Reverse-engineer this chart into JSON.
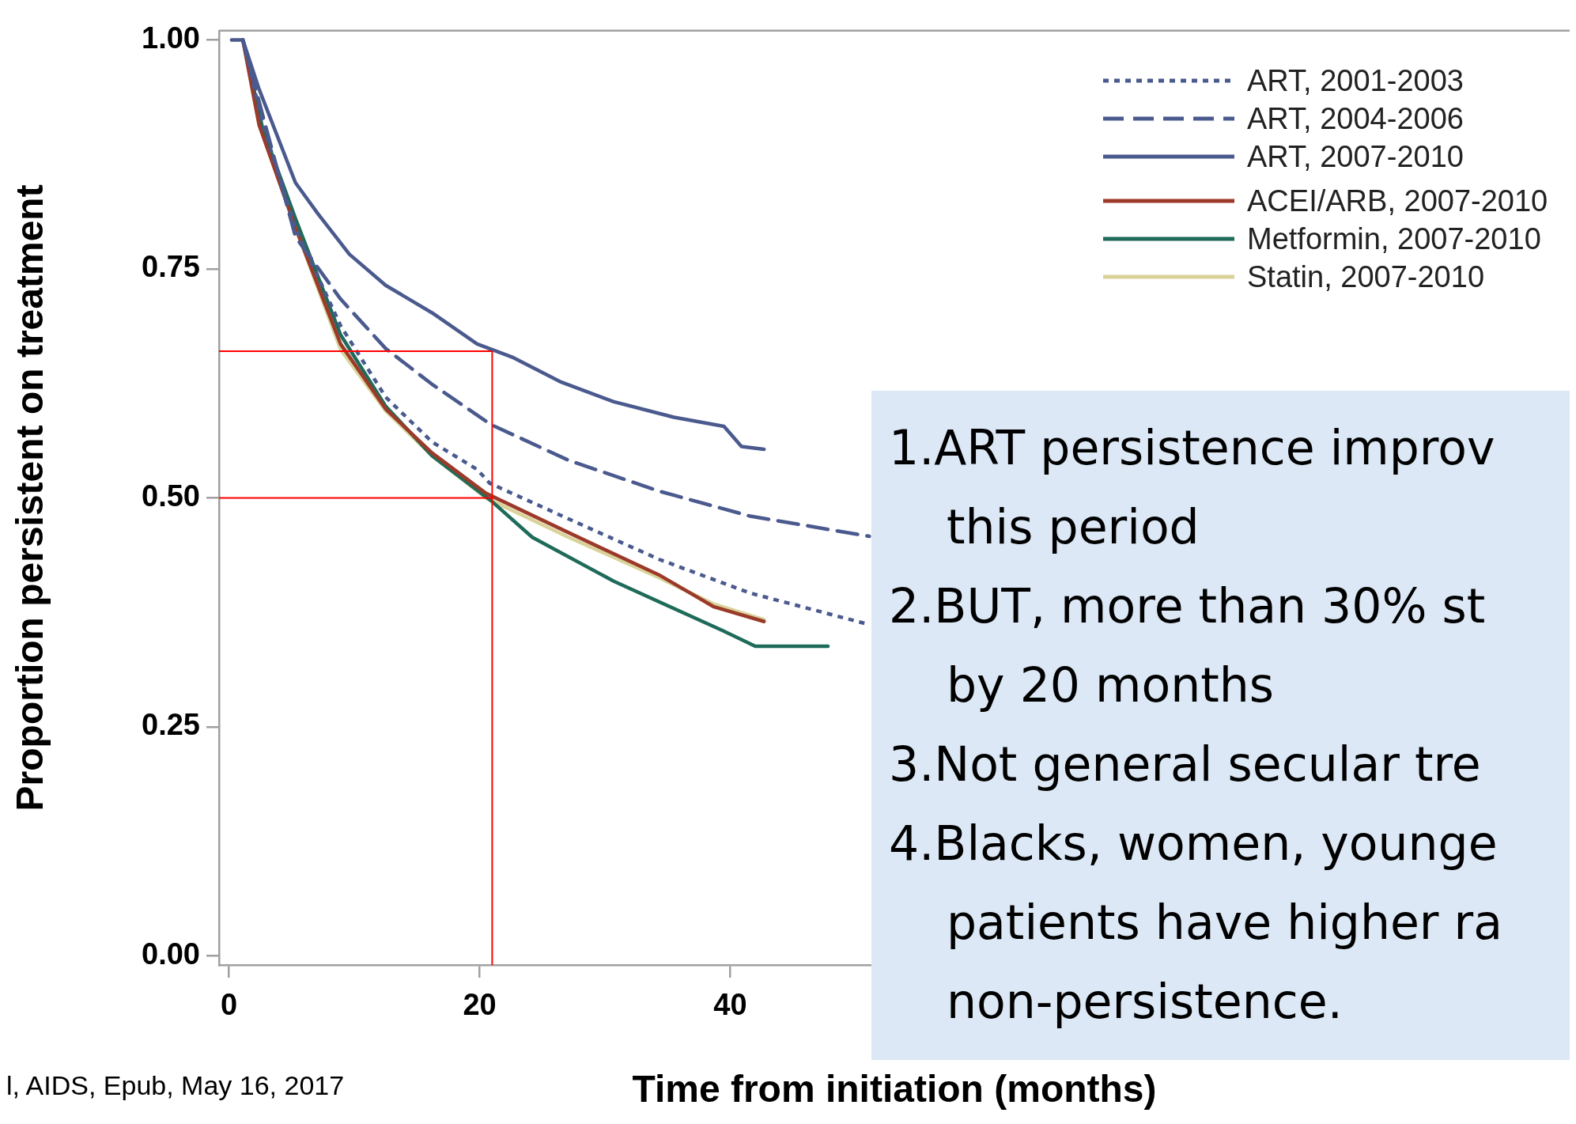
{
  "chart_data": {
    "type": "line",
    "xlabel": "Time from initiation (months)",
    "ylabel": "Proportion persistent on treatment",
    "xlim": [
      -0.8,
      107
    ],
    "xticks": [
      0,
      20,
      40
    ],
    "ylim": [
      -0.01,
      1.01
    ],
    "yticks": [
      {
        "value": 0,
        "label": "0.00"
      },
      {
        "value": 0.25,
        "label": "0.25"
      },
      {
        "value": 0.5,
        "label": "0.50"
      },
      {
        "value": 0.75,
        "label": "0.75"
      },
      {
        "value": 1,
        "label": "1.00"
      }
    ],
    "grid": false,
    "legend": "top right",
    "marker": "none",
    "series": [
      {
        "name": "ART, 2001-2003",
        "color": "#4a5a8e",
        "line_style": "dotted",
        "x": [
          1.1,
          2.7,
          5.3,
          8.9,
          12.5,
          16.2,
          19.8,
          20.8,
          27.1,
          34.3,
          41.6,
          51.0
        ],
        "values": [
          1.0,
          0.907,
          0.795,
          0.688,
          0.61,
          0.561,
          0.531,
          0.516,
          0.477,
          0.433,
          0.396,
          0.362
        ]
      },
      {
        "name": "ART, 2004-2006",
        "color": "#4a5a8e",
        "line_style": "dashed",
        "x": [
          1.1,
          2.7,
          5.3,
          8.9,
          12.5,
          16.2,
          20.9,
          27.1,
          34.4,
          41.6,
          51.1
        ],
        "values": [
          1.0,
          0.917,
          0.785,
          0.717,
          0.663,
          0.624,
          0.58,
          0.541,
          0.507,
          0.48,
          0.458
        ]
      },
      {
        "name": "ART, 2007-2010",
        "color": "#4a5a8e",
        "line_style": "solid",
        "x": [
          0.2,
          1.1,
          2.4,
          5.3,
          7.1,
          9.6,
          12.5,
          16.2,
          19.8,
          22.7,
          26.4,
          30.7,
          35.5,
          39.5,
          40.9,
          42.7
        ],
        "values": [
          1.0,
          1.0,
          0.946,
          0.844,
          0.81,
          0.766,
          0.732,
          0.702,
          0.668,
          0.653,
          0.627,
          0.605,
          0.588,
          0.578,
          0.556,
          0.553
        ]
      },
      {
        "name": "ACEI/ARB, 2007-2010",
        "color": "#9c3a2a",
        "line_style": "solid",
        "x": [
          1.1,
          2.4,
          5.3,
          8.9,
          12.5,
          16.2,
          20.5,
          27.1,
          34.3,
          38.7,
          42.7
        ],
        "values": [
          1.0,
          0.907,
          0.795,
          0.668,
          0.597,
          0.549,
          0.505,
          0.462,
          0.416,
          0.381,
          0.365
        ]
      },
      {
        "name": "Metformin, 2007-2010",
        "color": "#1f6b5a",
        "line_style": "solid",
        "x": [
          1.1,
          2.7,
          5.3,
          8.9,
          12.5,
          16.2,
          20.9,
          24.2,
          30.7,
          39.4,
          42.0,
          47.8
        ],
        "values": [
          1.0,
          0.902,
          0.805,
          0.678,
          0.6,
          0.546,
          0.497,
          0.457,
          0.409,
          0.355,
          0.338,
          0.338
        ]
      },
      {
        "name": "Statin, 2007-2010",
        "color": "#d9d39a",
        "line_style": "solid",
        "x": [
          0.2,
          1.1,
          2.4,
          5.3,
          8.9,
          12.5,
          16.2,
          20.5,
          27.1,
          34.3,
          38.7,
          42.7
        ],
        "values": [
          1.0,
          1.0,
          0.907,
          0.795,
          0.662,
          0.595,
          0.546,
          0.5,
          0.457,
          0.413,
          0.384,
          0.367
        ]
      }
    ],
    "ref_lines": [
      {
        "axis": "y",
        "value": 0.66,
        "color": "#ff0000"
      },
      {
        "axis": "y",
        "value": 0.5,
        "color": "#ff0000"
      },
      {
        "axis": "x",
        "value": 21,
        "color": "#ff0000"
      }
    ],
    "annotations": [
      "1.ART persistence improv\nthis period",
      "2.BUT, more than 30% st\nby 20 months",
      "3.Not general secular tre",
      "4.Blacks, women, younge\npatients have higher ra\nnon-persistence.",
      "l, AIDS, Epub, May 16, 2017"
    ]
  }
}
